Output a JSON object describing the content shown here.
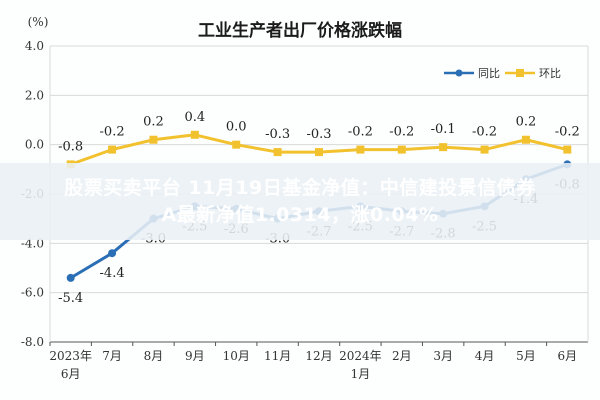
{
  "chart_data": {
    "type": "line",
    "title": "工业生产者出厂价格涨跌幅",
    "unit_label": "(%)",
    "ylim": [
      -8.0,
      4.0
    ],
    "yticks": [
      "4.0",
      "2.0",
      "0.0",
      "-2.0",
      "-4.0",
      "-6.0",
      "-8.0"
    ],
    "ytick_values": [
      4,
      2,
      0,
      -2,
      -4,
      -6,
      -8
    ],
    "categories": [
      [
        "2023年",
        "6月"
      ],
      [
        "7月"
      ],
      [
        "8月"
      ],
      [
        "9月"
      ],
      [
        "10月"
      ],
      [
        "11月"
      ],
      [
        "12月"
      ],
      [
        "2024年",
        "1月"
      ],
      [
        "2月"
      ],
      [
        "3月"
      ],
      [
        "4月"
      ],
      [
        "5月"
      ],
      [
        "6月"
      ]
    ],
    "legend_position": "top-right",
    "grid": true,
    "series": [
      {
        "name": "同比",
        "color": "#2a6fb5",
        "values": [
          -5.4,
          -4.4,
          -3.0,
          -2.5,
          -2.6,
          -3.0,
          -2.7,
          -2.5,
          -2.7,
          -2.8,
          -2.5,
          -1.4,
          -0.8
        ],
        "labels": [
          "-5.4",
          "-4.4",
          "-3.0",
          "-2.5",
          "-2.6",
          "-3.0",
          "-2.7",
          "-2.5",
          "-2.7",
          "-2.8",
          "-2.5",
          "-1.4",
          "-0.8"
        ]
      },
      {
        "name": "环比",
        "color": "#f2c12e",
        "values": [
          -0.8,
          -0.2,
          0.2,
          0.4,
          0.0,
          -0.3,
          -0.3,
          -0.2,
          -0.2,
          -0.1,
          -0.2,
          0.2,
          -0.2
        ],
        "labels": [
          "-0.8",
          "-0.2",
          "0.2",
          "0.4",
          "0.0",
          "-0.3",
          "-0.3",
          "-0.2",
          "-0.2",
          "-0.1",
          "-0.2",
          "0.2",
          "-0.2"
        ]
      }
    ]
  },
  "overlay": {
    "line1": "股票买卖平台 11月19日基金净值：中信建投景信债券",
    "line2": "A最新净值1.0314，涨0.04%"
  }
}
